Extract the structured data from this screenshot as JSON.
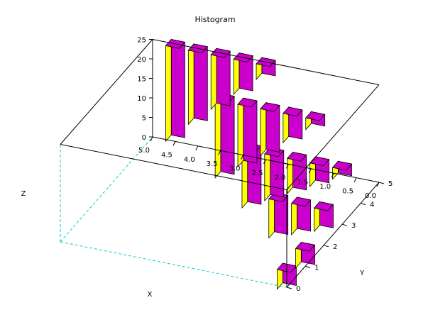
{
  "chart_data": {
    "type": "bar3d",
    "title": "Histogram",
    "xlabel": "X",
    "ylabel": "Y",
    "zlabel": "Z",
    "x_ticks": [
      "0.0",
      "0.5",
      "1.0",
      "1.5",
      "2.0",
      "2.5",
      "3.0",
      "3.5",
      "4.0",
      "4.5",
      "5.0"
    ],
    "y_ticks": [
      "0",
      "1",
      "2",
      "3",
      "4",
      "5"
    ],
    "z_ticks": [
      "0",
      "5",
      "10",
      "15",
      "20",
      "25"
    ],
    "xlim": [
      0,
      5
    ],
    "ylim": [
      0,
      5
    ],
    "zlim": [
      0,
      25
    ],
    "colors": {
      "front": "#cc00cc",
      "side": "#ffff00",
      "top": "#cc00cc",
      "axis": "#000000",
      "hidden_axis": "#00cccc"
    },
    "bars": [
      {
        "x": 4.5,
        "y": 5,
        "z0": 0.5,
        "z1": 25
      },
      {
        "x": 4.0,
        "y": 5,
        "z0": 6.0,
        "z1": 25
      },
      {
        "x": 3.5,
        "y": 5,
        "z0": 11.0,
        "z1": 25
      },
      {
        "x": 3.0,
        "y": 5,
        "z0": 16.0,
        "z1": 25
      },
      {
        "x": 2.5,
        "y": 5,
        "z0": 21.0,
        "z1": 25
      },
      {
        "x": 3.0,
        "y": 4,
        "z0": 0.0,
        "z1": 20
      },
      {
        "x": 2.5,
        "y": 4,
        "z0": 4.0,
        "z1": 20
      },
      {
        "x": 2.0,
        "y": 4,
        "z0": 8.0,
        "z1": 20
      },
      {
        "x": 1.5,
        "y": 4,
        "z0": 12.5,
        "z1": 20
      },
      {
        "x": 1.0,
        "y": 4,
        "z0": 17.0,
        "z1": 20
      },
      {
        "x": 2.0,
        "y": 3,
        "z0": 0.0,
        "z1": 15
      },
      {
        "x": 1.5,
        "y": 3,
        "z0": 3.0,
        "z1": 15
      },
      {
        "x": 1.0,
        "y": 3,
        "z0": 6.0,
        "z1": 15
      },
      {
        "x": 0.5,
        "y": 3,
        "z0": 9.0,
        "z1": 15
      },
      {
        "x": 0.0,
        "y": 3,
        "z0": 12.0,
        "z1": 15
      },
      {
        "x": 1.0,
        "y": 2,
        "z0": 0.0,
        "z1": 10
      },
      {
        "x": 0.5,
        "y": 2,
        "z0": 2.0,
        "z1": 10
      },
      {
        "x": 0.0,
        "y": 2,
        "z0": 4.0,
        "z1": 10
      },
      {
        "x": 0.0,
        "y": 1,
        "z0": 0.0,
        "z1": 5
      },
      {
        "x": 0.0,
        "y": 0,
        "z0": 0.0,
        "z1": 5
      }
    ]
  }
}
